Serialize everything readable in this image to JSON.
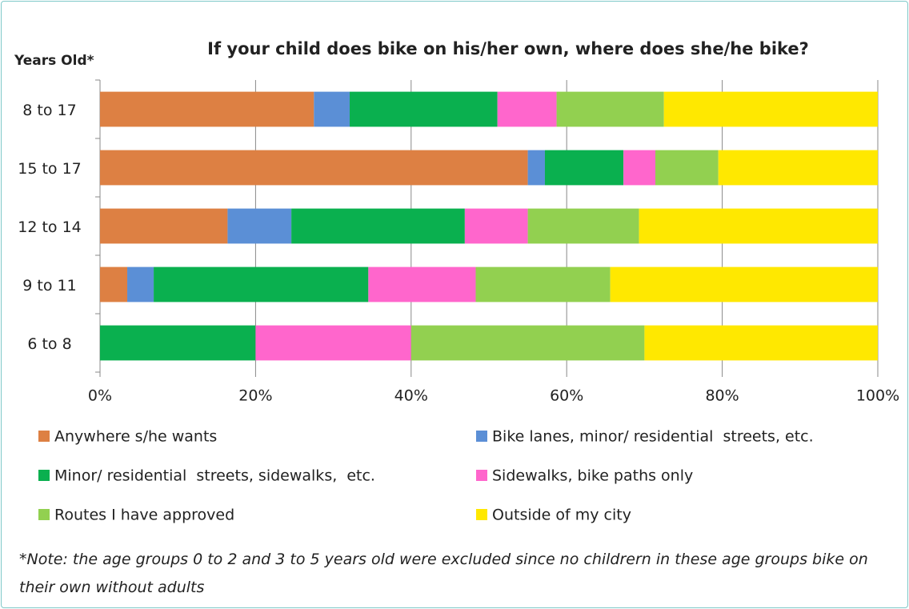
{
  "chart_data": {
    "type": "stacked_bar_horizontal",
    "title": "If your child does bike on his/her own, where does she/he bike?",
    "y_axis_label": "Years Old*",
    "note": "*Note: the age groups 0 to 2 and 3 to 5 years old were excluded since no childrern in these age groups bike on their own without adults",
    "categories": [
      "8 to 17",
      "15 to 17",
      "12 to 14",
      "9 to 11",
      "6 to 8"
    ],
    "series": [
      {
        "name": "Anywhere s/he wants",
        "color": "#dd8043",
        "values": [
          27.5,
          55.0,
          16.4,
          3.5,
          0
        ]
      },
      {
        "name": "Bike lanes, minor/ residential  streets, etc.",
        "color": "#5b8fd6",
        "values": [
          4.6,
          2.2,
          8.2,
          3.4,
          0
        ]
      },
      {
        "name": "Minor/ residential  streets, sidewalks,  etc.",
        "color": "#0ab04f",
        "values": [
          19.0,
          10.1,
          22.3,
          27.6,
          20
        ]
      },
      {
        "name": "Sidewalks, bike paths only",
        "color": "#ff66cc",
        "values": [
          7.6,
          4.1,
          8.1,
          13.8,
          20
        ]
      },
      {
        "name": "Routes I have approved",
        "color": "#92d050",
        "values": [
          13.8,
          8.1,
          14.3,
          17.3,
          30
        ]
      },
      {
        "name": "Outside of my city",
        "color": "#ffe800",
        "values": [
          27.5,
          20.5,
          30.7,
          34.4,
          30
        ]
      }
    ],
    "xlim": [
      0,
      100
    ],
    "xticks": [
      {
        "value": 0,
        "label": "0%"
      },
      {
        "value": 20,
        "label": "20%"
      },
      {
        "value": 40,
        "label": "40%"
      },
      {
        "value": 60,
        "label": "60%"
      },
      {
        "value": 80,
        "label": "80%"
      },
      {
        "value": 100,
        "label": "100%"
      }
    ],
    "grid": true
  }
}
